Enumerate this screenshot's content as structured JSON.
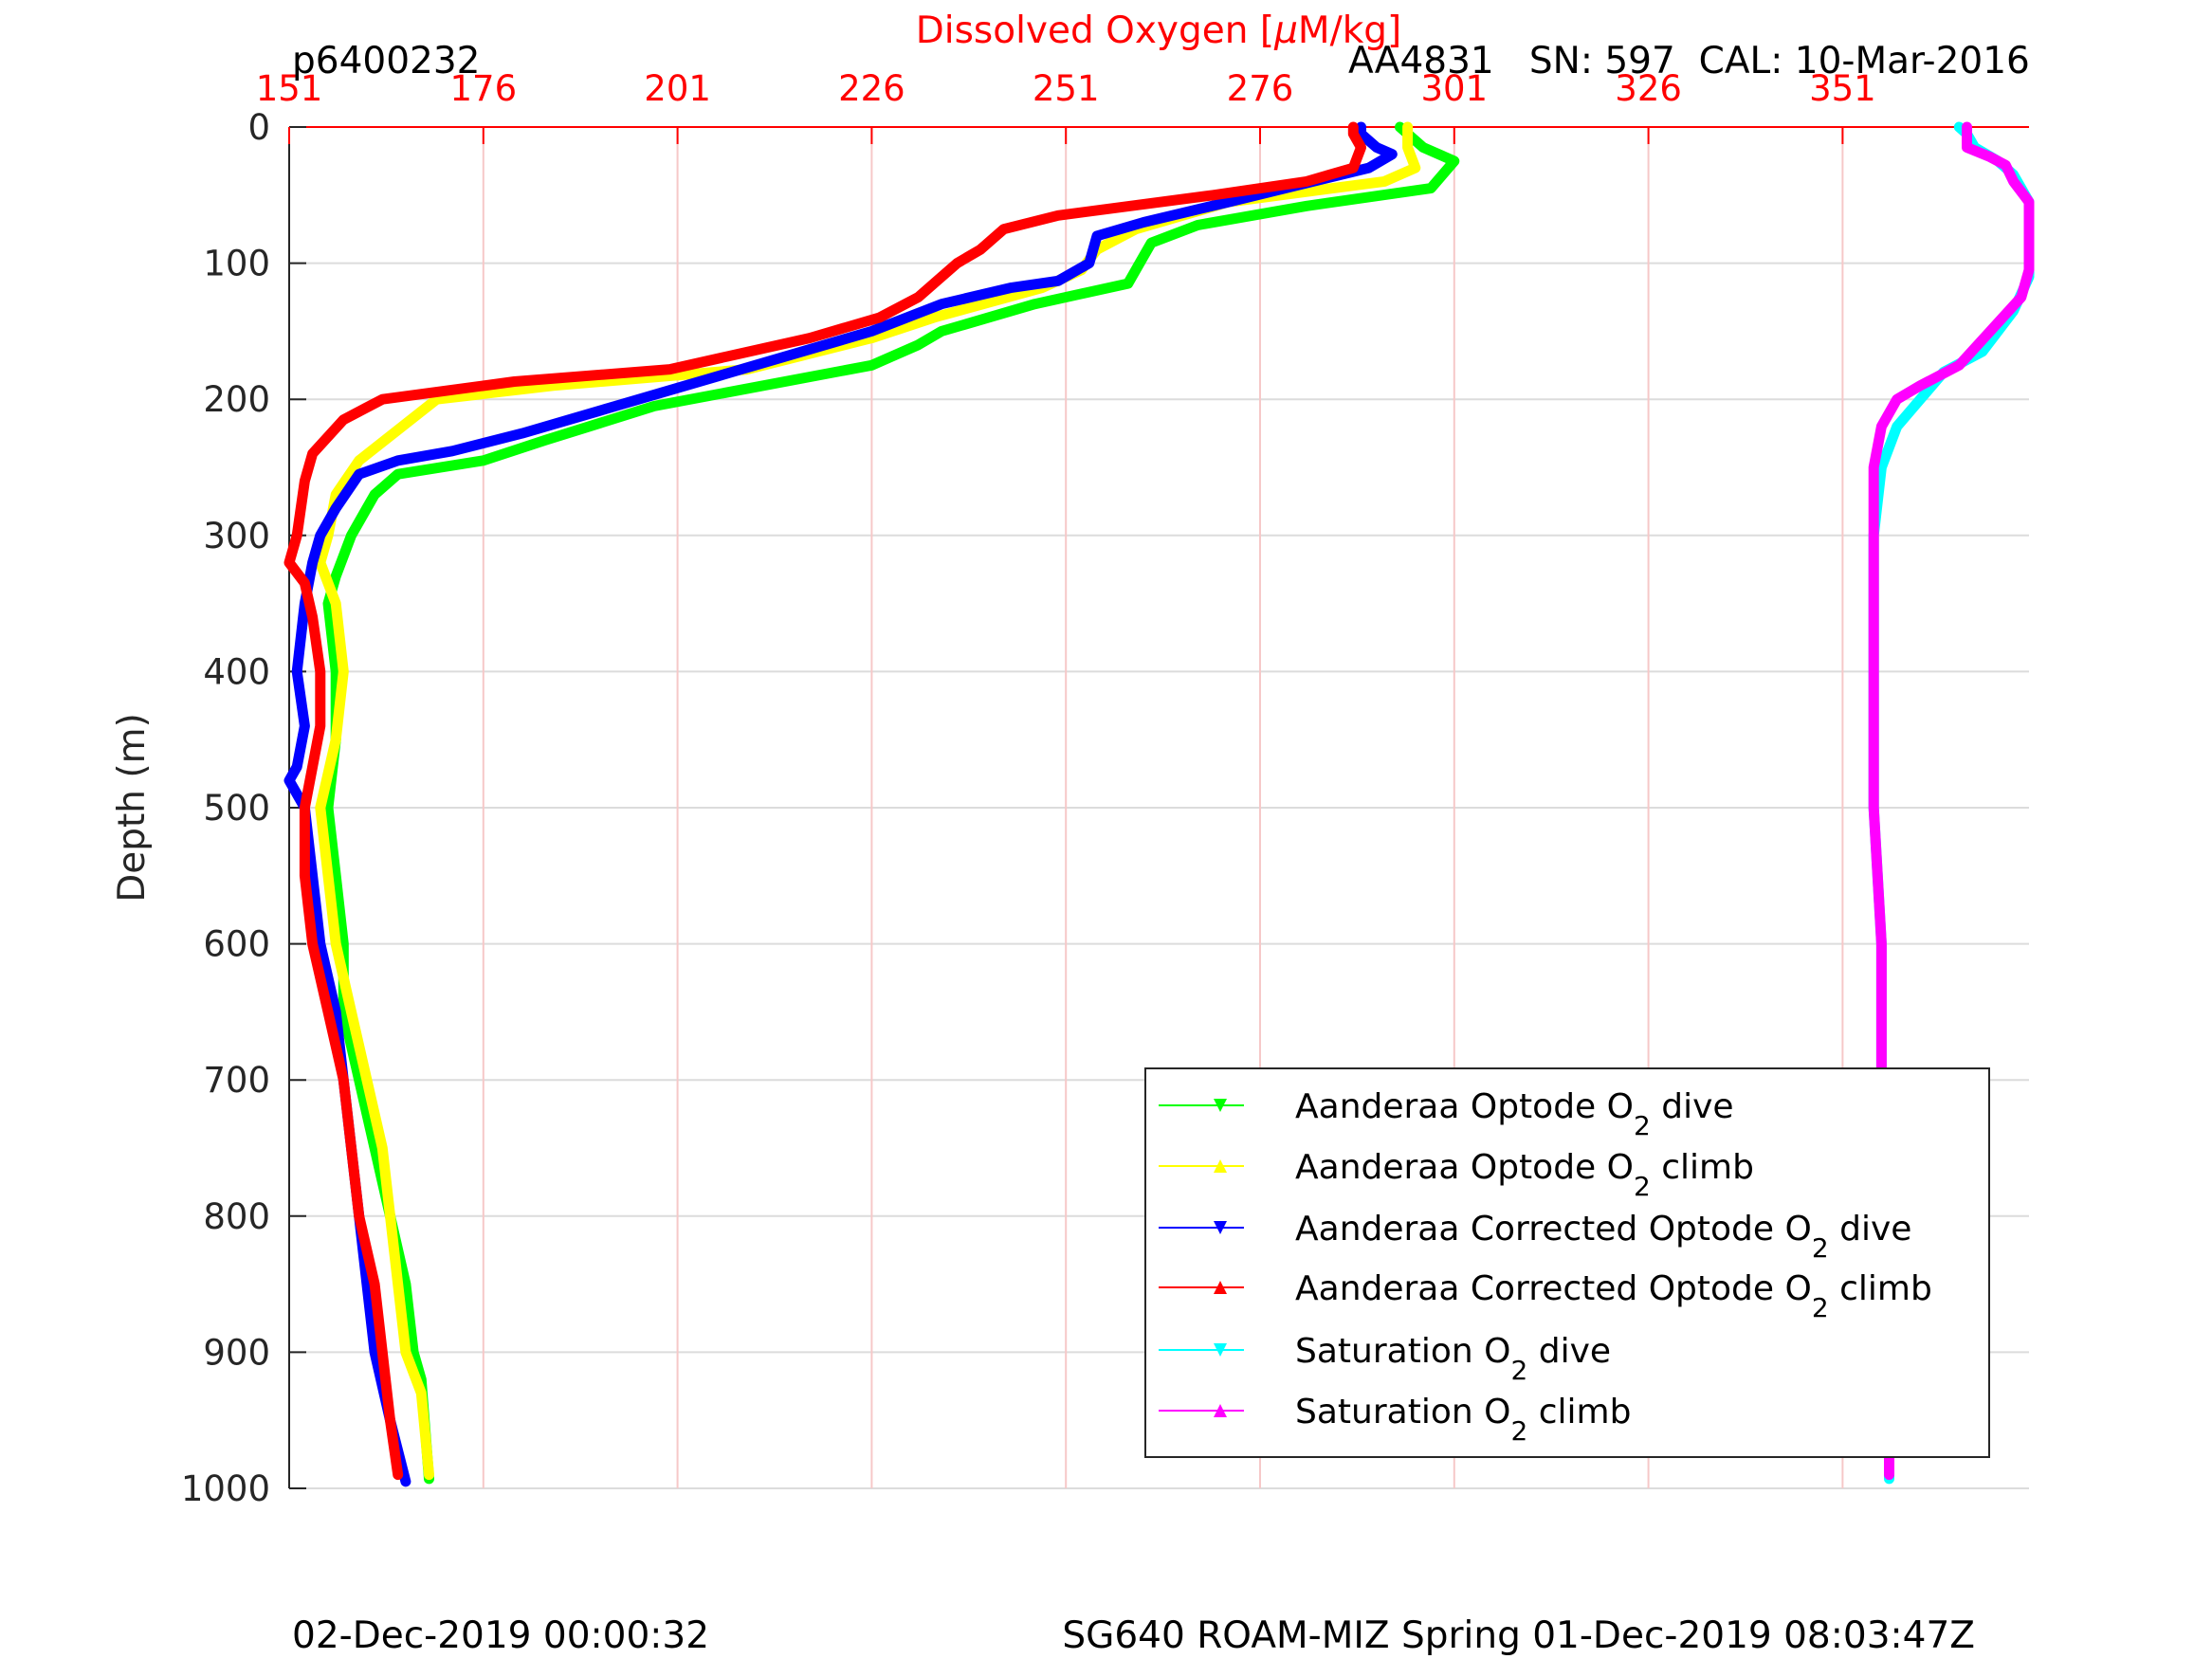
{
  "header": {
    "profile_id": "p6400232",
    "sensor_info": "AA4831   SN: 597  CAL: 10-Mar-2016"
  },
  "footer": {
    "left": "02-Dec-2019 00:00:32",
    "right": "SG640 ROAM-MIZ Spring 01-Dec-2019 08:03:47Z"
  },
  "colors": {
    "axis_top": "#ff0000",
    "text": "#262626",
    "grid": "#dcdcdc",
    "grid_top": "#f6c8c8"
  },
  "chart_data": {
    "type": "line",
    "title": "",
    "xlabel_prefix": "Dissolved Oxygen [",
    "xlabel_mu": "μ",
    "xlabel_suffix": "M/kg]",
    "ylabel": "Depth (m)",
    "xlim": [
      151,
      375
    ],
    "ylim": [
      0,
      1000
    ],
    "y_reversed": true,
    "grid": true,
    "legend_placement": "bottom-right",
    "xticks": [
      151,
      176,
      201,
      226,
      251,
      276,
      301,
      326,
      351
    ],
    "yticks": [
      0,
      100,
      200,
      300,
      400,
      500,
      600,
      700,
      800,
      900,
      1000
    ],
    "series": [
      {
        "name_pre": "Aanderaa Optode O",
        "name_sub": "2",
        "name_post": " dive",
        "color": "#00ff00",
        "marker": "triangle-down",
        "points": [
          [
            294,
            0
          ],
          [
            297,
            15
          ],
          [
            301,
            25
          ],
          [
            298,
            45
          ],
          [
            282,
            58
          ],
          [
            268,
            72
          ],
          [
            262,
            85
          ],
          [
            261,
            95
          ],
          [
            259,
            115
          ],
          [
            247,
            130
          ],
          [
            235,
            150
          ],
          [
            232,
            160
          ],
          [
            226,
            175
          ],
          [
            198,
            205
          ],
          [
            184,
            230
          ],
          [
            176,
            245
          ],
          [
            165,
            255
          ],
          [
            162,
            270
          ],
          [
            159,
            300
          ],
          [
            157,
            330
          ],
          [
            156,
            350
          ],
          [
            157,
            400
          ],
          [
            157,
            450
          ],
          [
            156,
            500
          ],
          [
            157,
            550
          ],
          [
            158,
            600
          ],
          [
            158,
            650
          ],
          [
            160,
            700
          ],
          [
            162,
            750
          ],
          [
            164,
            800
          ],
          [
            166,
            850
          ],
          [
            167,
            900
          ],
          [
            168,
            920
          ],
          [
            169,
            993
          ]
        ]
      },
      {
        "name_pre": "Aanderaa Optode O",
        "name_sub": "2",
        "name_post": " climb",
        "color": "#ffff00",
        "marker": "triangle-up",
        "points": [
          [
            295,
            0
          ],
          [
            295,
            15
          ],
          [
            296,
            30
          ],
          [
            292,
            40
          ],
          [
            272,
            55
          ],
          [
            260,
            75
          ],
          [
            255,
            90
          ],
          [
            253,
            105
          ],
          [
            248,
            118
          ],
          [
            234,
            140
          ],
          [
            226,
            155
          ],
          [
            210,
            178
          ],
          [
            185,
            190
          ],
          [
            170,
            200
          ],
          [
            160,
            245
          ],
          [
            157,
            270
          ],
          [
            156,
            300
          ],
          [
            155,
            320
          ],
          [
            157,
            350
          ],
          [
            158,
            400
          ],
          [
            157,
            450
          ],
          [
            155,
            500
          ],
          [
            156,
            550
          ],
          [
            157,
            600
          ],
          [
            159,
            650
          ],
          [
            161,
            700
          ],
          [
            163,
            750
          ],
          [
            164,
            800
          ],
          [
            165,
            850
          ],
          [
            166,
            900
          ],
          [
            168,
            930
          ],
          [
            169,
            990
          ]
        ]
      },
      {
        "name_pre": "Aanderaa Corrected Optode O",
        "name_sub": "2",
        "name_post": " dive",
        "color": "#0000ff",
        "marker": "triangle-down",
        "points": [
          [
            289,
            0
          ],
          [
            289,
            5
          ],
          [
            291,
            15
          ],
          [
            293,
            20
          ],
          [
            290,
            30
          ],
          [
            272,
            55
          ],
          [
            261,
            70
          ],
          [
            255,
            80
          ],
          [
            254,
            100
          ],
          [
            250,
            113
          ],
          [
            244,
            118
          ],
          [
            235,
            130
          ],
          [
            226,
            150
          ],
          [
            208,
            180
          ],
          [
            193,
            205
          ],
          [
            181,
            225
          ],
          [
            172,
            238
          ],
          [
            165,
            245
          ],
          [
            160,
            255
          ],
          [
            157,
            280
          ],
          [
            155,
            300
          ],
          [
            154,
            320
          ],
          [
            153,
            350
          ],
          [
            152,
            400
          ],
          [
            153,
            440
          ],
          [
            152,
            470
          ],
          [
            151,
            480
          ],
          [
            153,
            500
          ],
          [
            154,
            550
          ],
          [
            155,
            600
          ],
          [
            157,
            650
          ],
          [
            158,
            700
          ],
          [
            159,
            750
          ],
          [
            160,
            800
          ],
          [
            161,
            850
          ],
          [
            162,
            900
          ],
          [
            164,
            950
          ],
          [
            166,
            995
          ]
        ]
      },
      {
        "name_pre": "Aanderaa Corrected Optode O",
        "name_sub": "2",
        "name_post": " climb",
        "color": "#ff0000",
        "marker": "triangle-up",
        "points": [
          [
            288,
            0
          ],
          [
            288,
            5
          ],
          [
            289,
            15
          ],
          [
            288,
            30
          ],
          [
            282,
            40
          ],
          [
            270,
            50
          ],
          [
            250,
            65
          ],
          [
            243,
            75
          ],
          [
            240,
            90
          ],
          [
            237,
            100
          ],
          [
            234,
            115
          ],
          [
            232,
            125
          ],
          [
            227,
            140
          ],
          [
            218,
            155
          ],
          [
            200,
            178
          ],
          [
            180,
            187
          ],
          [
            163,
            200
          ],
          [
            158,
            215
          ],
          [
            154,
            240
          ],
          [
            153,
            260
          ],
          [
            152,
            300
          ],
          [
            151,
            320
          ],
          [
            153,
            335
          ],
          [
            154,
            360
          ],
          [
            155,
            400
          ],
          [
            155,
            440
          ],
          [
            154,
            470
          ],
          [
            153,
            500
          ],
          [
            153,
            550
          ],
          [
            154,
            600
          ],
          [
            156,
            650
          ],
          [
            158,
            700
          ],
          [
            159,
            750
          ],
          [
            160,
            800
          ],
          [
            162,
            850
          ],
          [
            163,
            900
          ],
          [
            164,
            950
          ],
          [
            165,
            990
          ]
        ]
      },
      {
        "name_pre": "Saturation O",
        "name_sub": "2",
        "name_post": " dive",
        "color": "#00ffff",
        "marker": "triangle-down",
        "points": [
          [
            366,
            0
          ],
          [
            367,
            5
          ],
          [
            368,
            15
          ],
          [
            371,
            25
          ],
          [
            373,
            35
          ],
          [
            374,
            45
          ],
          [
            375,
            55
          ],
          [
            375,
            110
          ],
          [
            373,
            135
          ],
          [
            369,
            165
          ],
          [
            364,
            180
          ],
          [
            361,
            200
          ],
          [
            358,
            220
          ],
          [
            356,
            250
          ],
          [
            355,
            300
          ],
          [
            355,
            400
          ],
          [
            355,
            500
          ],
          [
            356,
            600
          ],
          [
            356,
            700
          ],
          [
            357,
            800
          ],
          [
            357,
            900
          ],
          [
            357,
            993
          ]
        ]
      },
      {
        "name_pre": "Saturation O",
        "name_sub": "2",
        "name_post": " climb",
        "color": "#ff00ff",
        "marker": "triangle-up",
        "points": [
          [
            367,
            0
          ],
          [
            367,
            15
          ],
          [
            370,
            22
          ],
          [
            372,
            28
          ],
          [
            373,
            40
          ],
          [
            375,
            55
          ],
          [
            375,
            105
          ],
          [
            374,
            125
          ],
          [
            370,
            150
          ],
          [
            366,
            175
          ],
          [
            361,
            190
          ],
          [
            358,
            200
          ],
          [
            356,
            220
          ],
          [
            355,
            250
          ],
          [
            355,
            300
          ],
          [
            355,
            400
          ],
          [
            355,
            500
          ],
          [
            356,
            600
          ],
          [
            356,
            700
          ],
          [
            357,
            800
          ],
          [
            357,
            900
          ],
          [
            357,
            990
          ]
        ]
      }
    ]
  }
}
